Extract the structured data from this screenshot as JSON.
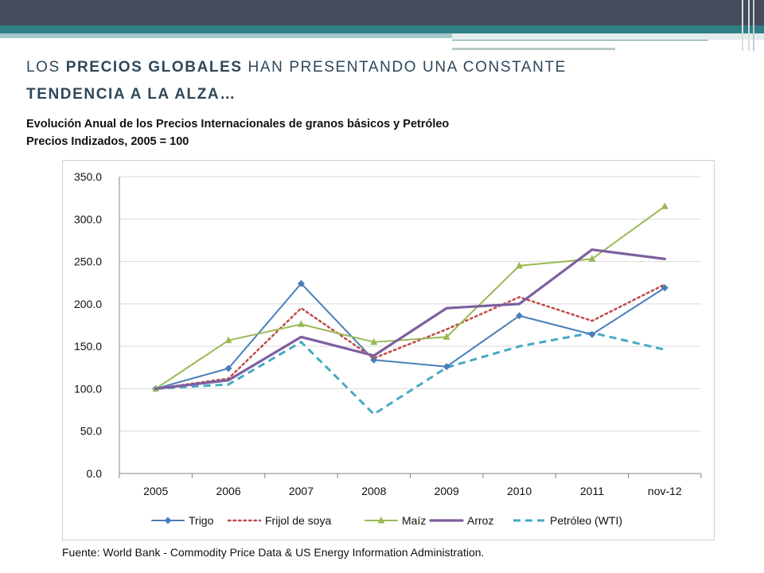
{
  "slide": {
    "title_part1": "LOS ",
    "title_bold1": "PRECIOS GLOBALES",
    "title_part2": " HAN PRESENTANDO UNA CONSTANTE",
    "title_bold2": "TENDENCIA A LA ALZA…",
    "subtitle_line1": "Evolución  Anual de los Precios  Internacionales de granos básicos y  Petróleo",
    "subtitle_line2": "Precios Indizados,  2005 = 100",
    "source": "Fuente: World Bank - Commodity Price Data &  US Energy Information Administration."
  },
  "chart_data": {
    "type": "line",
    "title": "",
    "xlabel": "",
    "ylabel": "",
    "ylim": [
      0,
      350
    ],
    "yticks": [
      0,
      50,
      100,
      150,
      200,
      250,
      300,
      350
    ],
    "ytick_labels": [
      "0.0",
      "50.0",
      "100.0",
      "150.0",
      "200.0",
      "250.0",
      "300.0",
      "350.0"
    ],
    "grid": true,
    "legend_position": "bottom",
    "categories": [
      "2005",
      "2006",
      "2007",
      "2008",
      "2009",
      "2010",
      "2011",
      "nov-12"
    ],
    "series": [
      {
        "name": "Trigo",
        "color": "#4a7ebb",
        "style": "solid",
        "marker": "diamond",
        "values": [
          100,
          124,
          224,
          134,
          126,
          186,
          164,
          219
        ]
      },
      {
        "name": "Frijol de soya",
        "color": "#be4b48",
        "style": "dotted",
        "marker": "none",
        "values": [
          100,
          112,
          195,
          136,
          170,
          208,
          180,
          223
        ]
      },
      {
        "name": "Maíz",
        "color": "#98b954",
        "style": "solid",
        "marker": "triangle",
        "values": [
          100,
          157,
          176,
          155,
          161,
          245,
          253,
          315
        ]
      },
      {
        "name": "Arroz",
        "color": "#7d5fa0",
        "style": "solid-thick",
        "marker": "none",
        "values": [
          100,
          110,
          161,
          139,
          195,
          200,
          264,
          253
        ]
      },
      {
        "name": "Petróleo (WTI)",
        "color": "#46aac5",
        "style": "dashed",
        "marker": "none",
        "values": [
          100,
          105,
          155,
          70,
          125,
          150,
          166,
          146
        ]
      }
    ]
  }
}
